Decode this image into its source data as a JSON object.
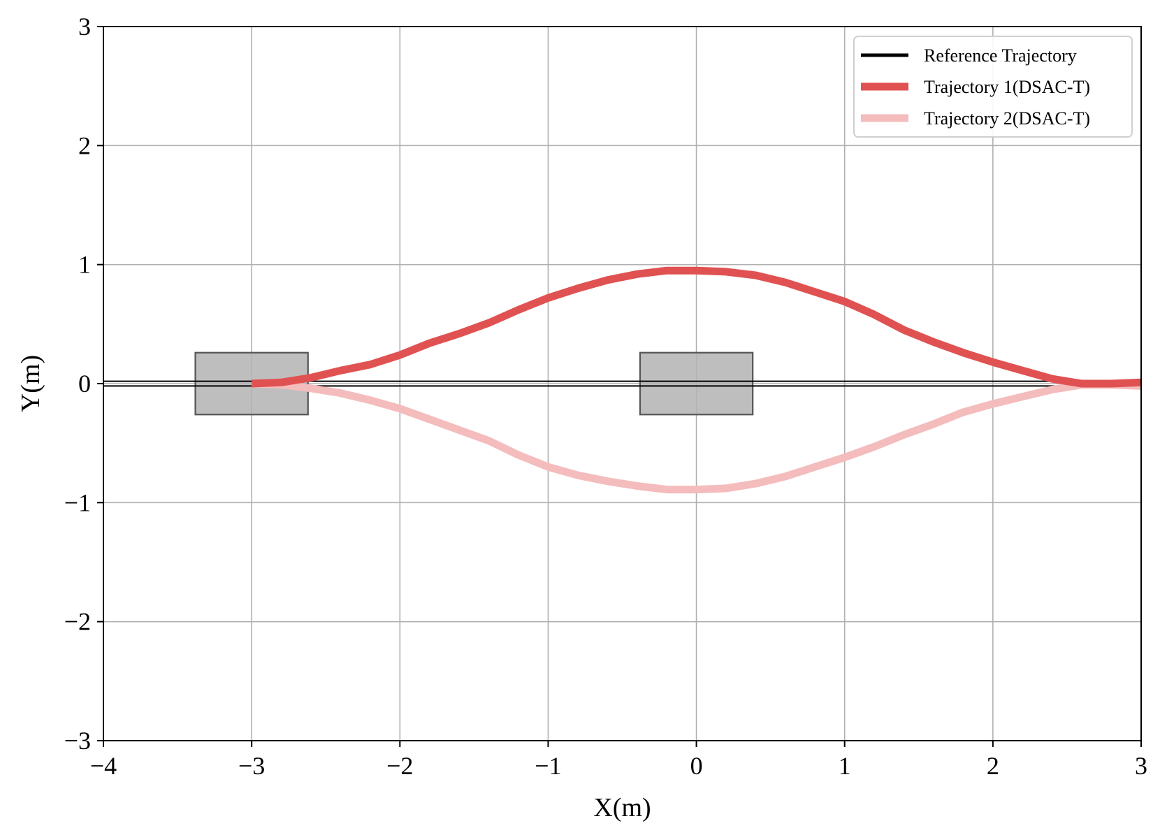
{
  "chart_data": {
    "type": "line",
    "title": "",
    "xlabel": "X(m)",
    "ylabel": "Y(m)",
    "xlim": [
      -4,
      3
    ],
    "ylim": [
      -3,
      3
    ],
    "xticks": [
      -4,
      -3,
      -2,
      -1,
      0,
      1,
      2,
      3
    ],
    "yticks": [
      -3,
      -2,
      -1,
      0,
      1,
      2,
      3
    ],
    "xtick_labels": [
      "−4",
      "−3",
      "−2",
      "−1",
      "0",
      "1",
      "2",
      "3"
    ],
    "ytick_labels": [
      "−3",
      "−2",
      "−1",
      "0",
      "1",
      "2",
      "3"
    ],
    "grid": true,
    "legend_position": "top-right",
    "obstacles": [
      {
        "x": [
          -3.38,
          -2.62
        ],
        "y": [
          -0.26,
          0.26
        ],
        "color": "#b3b3b3"
      },
      {
        "x": [
          -0.38,
          0.38
        ],
        "y": [
          -0.26,
          0.26
        ],
        "color": "#b3b3b3"
      }
    ],
    "series": [
      {
        "name": "Reference Trajectory",
        "color": "#000000",
        "reference_y": 0,
        "reference_band": 0.02,
        "x": [
          -4,
          3
        ],
        "y": [
          0,
          0
        ]
      },
      {
        "name": "Trajectory 1(DSAC-T)",
        "color": "#e05252",
        "x": [
          -3.0,
          -2.8,
          -2.6,
          -2.4,
          -2.2,
          -2.0,
          -1.8,
          -1.6,
          -1.4,
          -1.2,
          -1.0,
          -0.8,
          -0.6,
          -0.4,
          -0.2,
          0.0,
          0.2,
          0.4,
          0.6,
          0.8,
          1.0,
          1.2,
          1.4,
          1.6,
          1.8,
          2.0,
          2.2,
          2.4,
          2.6,
          2.8,
          3.0
        ],
        "y": [
          0.0,
          0.01,
          0.05,
          0.11,
          0.16,
          0.24,
          0.34,
          0.42,
          0.51,
          0.62,
          0.72,
          0.8,
          0.87,
          0.92,
          0.95,
          0.95,
          0.94,
          0.91,
          0.85,
          0.77,
          0.69,
          0.58,
          0.45,
          0.35,
          0.26,
          0.18,
          0.11,
          0.04,
          0.0,
          0.0,
          0.01
        ]
      },
      {
        "name": "Trajectory 2(DSAC-T)",
        "color": "#f4bcbc",
        "x": [
          -3.0,
          -2.8,
          -2.6,
          -2.4,
          -2.2,
          -2.0,
          -1.8,
          -1.6,
          -1.4,
          -1.2,
          -1.0,
          -0.8,
          -0.6,
          -0.4,
          -0.2,
          0.0,
          0.2,
          0.4,
          0.6,
          0.8,
          1.0,
          1.2,
          1.4,
          1.6,
          1.8,
          2.0,
          2.2,
          2.4,
          2.6,
          2.8,
          3.0
        ],
        "y": [
          0.0,
          -0.01,
          -0.04,
          -0.08,
          -0.14,
          -0.21,
          -0.3,
          -0.39,
          -0.48,
          -0.6,
          -0.7,
          -0.77,
          -0.82,
          -0.86,
          -0.89,
          -0.89,
          -0.88,
          -0.84,
          -0.78,
          -0.7,
          -0.62,
          -0.53,
          -0.43,
          -0.34,
          -0.24,
          -0.17,
          -0.11,
          -0.05,
          -0.01,
          -0.01,
          -0.02
        ]
      }
    ]
  }
}
